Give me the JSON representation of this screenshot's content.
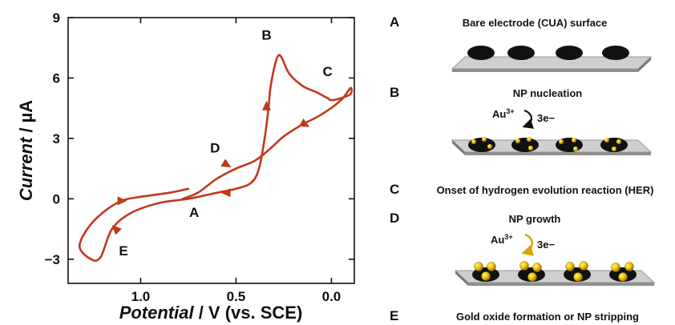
{
  "chart_data": {
    "type": "line",
    "title": "",
    "xlabel_italic": "Potential",
    "xlabel_rest": " / V (vs. SCE)",
    "ylabel_italic": "Current",
    "ylabel_rest": " / µA",
    "xlim": [
      1.38,
      -0.12
    ],
    "ylim": [
      -4.2,
      9
    ],
    "x_ticks": [
      {
        "value": 1.0,
        "label": "1.0"
      },
      {
        "value": 0.5,
        "label": "0.5"
      },
      {
        "value": 0.0,
        "label": "0.0"
      }
    ],
    "y_ticks": [
      {
        "value": 9,
        "label": "9"
      },
      {
        "value": 6,
        "label": "6"
      },
      {
        "value": 3,
        "label": "3"
      },
      {
        "value": 0,
        "label": "0"
      },
      {
        "value": -3,
        "label": "−3"
      }
    ],
    "grid": false,
    "line_color": "#c0391b",
    "series": [
      {
        "x": [
          0.75,
          0.85,
          1.0,
          1.1,
          1.2,
          1.28,
          1.32,
          1.26,
          1.21,
          1.15,
          1.05,
          0.9,
          0.75,
          0.6,
          0.5,
          0.42,
          0.38,
          0.35,
          0.33,
          0.32,
          0.3,
          0.28,
          0.26,
          0.22,
          0.15,
          0.08,
          0.04,
          0.02,
          0.0,
          -0.05,
          -0.1,
          -0.1,
          -0.05,
          0.05,
          0.15,
          0.25,
          0.32,
          0.4,
          0.5,
          0.6,
          0.7,
          0.78
        ],
        "y": [
          0.5,
          0.3,
          0.1,
          -0.1,
          -0.7,
          -1.5,
          -2.4,
          -3.0,
          -2.9,
          -1.5,
          -0.7,
          -0.2,
          0.0,
          0.3,
          0.5,
          0.8,
          1.5,
          3.0,
          4.5,
          5.5,
          6.5,
          7.1,
          7.0,
          6.2,
          5.6,
          5.3,
          5.1,
          5.0,
          4.9,
          5.0,
          5.2,
          5.5,
          4.9,
          4.2,
          3.7,
          3.1,
          2.5,
          1.9,
          1.5,
          1.0,
          0.3,
          0.0
        ]
      }
    ],
    "arrows": [
      {
        "x": 1.1,
        "y": -0.1,
        "dir": "right"
      },
      {
        "x": 1.13,
        "y": -1.5,
        "dir": "up-left"
      },
      {
        "x": 0.55,
        "y": 0.3,
        "dir": "left"
      },
      {
        "x": 0.34,
        "y": 4.6,
        "dir": "up"
      },
      {
        "x": 0.14,
        "y": 3.7,
        "dir": "down-right"
      },
      {
        "x": 0.55,
        "y": 1.7,
        "dir": "down-right"
      }
    ],
    "point_labels": [
      {
        "label": "A",
        "x": 0.72,
        "y": -0.9
      },
      {
        "label": "B",
        "x": 0.34,
        "y": 7.9
      },
      {
        "label": "C",
        "x": 0.02,
        "y": 6.1
      },
      {
        "label": "D",
        "x": 0.61,
        "y": 2.3
      },
      {
        "label": "E",
        "x": 1.09,
        "y": -2.8
      }
    ]
  },
  "panels": [
    {
      "letter": "A",
      "title": "Bare electrode (CUA) surface"
    },
    {
      "letter": "B",
      "title": "NP nucleation",
      "ion": "Au",
      "charge": "3+",
      "electrons": "3e−"
    },
    {
      "letter": "C",
      "title": "Onset of hydrogen evolution reaction (HER)"
    },
    {
      "letter": "D",
      "title": "NP growth",
      "ion": "Au",
      "charge": "3+",
      "electrons": "3e−"
    },
    {
      "letter": "E",
      "title": "Gold oxide formation or NP stripping"
    }
  ]
}
